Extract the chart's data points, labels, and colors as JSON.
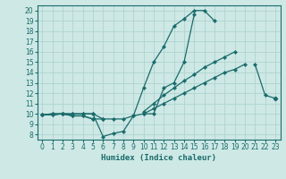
{
  "xlabel": "Humidex (Indice chaleur)",
  "bg_color": "#cde8e5",
  "grid_color": "#b0d4d0",
  "line_color": "#1a6b6b",
  "xlim": [
    -0.5,
    23.5
  ],
  "ylim": [
    7.5,
    20.5
  ],
  "xticks": [
    0,
    1,
    2,
    3,
    4,
    5,
    6,
    7,
    8,
    9,
    10,
    11,
    12,
    13,
    14,
    15,
    16,
    17,
    18,
    19,
    20,
    21,
    22,
    23
  ],
  "yticks": [
    8,
    9,
    10,
    11,
    12,
    13,
    14,
    15,
    16,
    17,
    18,
    19,
    20
  ],
  "main_curve": [
    9.9,
    10.0,
    10.0,
    10.0,
    10.0,
    10.0,
    9.5,
    9.5,
    9.5,
    9.8,
    12.5,
    15.0,
    16.5,
    18.5,
    19.2,
    20.0,
    20.0,
    19.0,
    null,
    null,
    null,
    null,
    null,
    null
  ],
  "dip_curve": [
    9.9,
    10.0,
    10.0,
    10.0,
    10.0,
    10.0,
    7.8,
    8.1,
    8.3,
    9.8,
    10.0,
    10.0,
    12.5,
    13.0,
    15.0,
    19.6,
    null,
    null,
    null,
    null,
    null,
    null,
    null,
    null
  ],
  "upper_trend": [
    9.9,
    9.9,
    10.0,
    9.8,
    9.8,
    9.5,
    9.5,
    null,
    null,
    null,
    10.2,
    11.0,
    11.8,
    12.5,
    13.2,
    13.8,
    14.5,
    15.0,
    15.5,
    16.0,
    null,
    14.8,
    11.8,
    11.5
  ],
  "lower_trend": [
    9.9,
    9.9,
    10.0,
    9.8,
    9.8,
    9.5,
    null,
    null,
    null,
    null,
    10.0,
    10.5,
    11.0,
    11.5,
    12.0,
    12.5,
    13.0,
    13.5,
    14.0,
    14.3,
    14.8,
    null,
    null,
    11.5
  ]
}
